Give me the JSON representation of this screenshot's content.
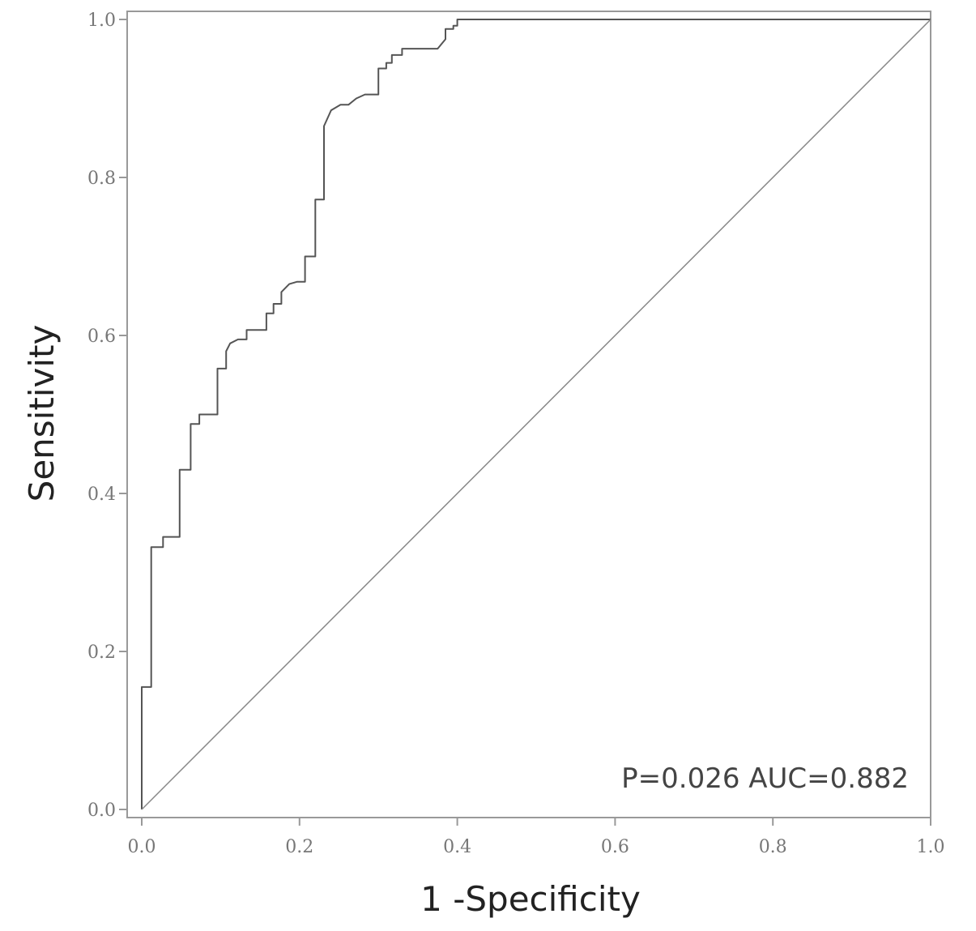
{
  "chart_data": {
    "type": "line",
    "title": "",
    "xlabel": "1 -Specificity",
    "ylabel": "Sensitivity",
    "xlim": [
      0.0,
      1.0
    ],
    "ylim": [
      0.0,
      1.0
    ],
    "x_ticks": [
      "0.0",
      "0.2",
      "0.4",
      "0.6",
      "0.8",
      "1.0"
    ],
    "y_ticks": [
      "0.0",
      "0.2",
      "0.4",
      "0.6",
      "0.8",
      "1.0"
    ],
    "grid": false,
    "legend": "none",
    "annotation": "P=0.026 AUC=0.882",
    "line_color": "#555555",
    "series": [
      {
        "name": "",
        "role": "roc",
        "x": [
          0.0,
          0.0,
          0.012,
          0.012,
          0.027,
          0.027,
          0.048,
          0.048,
          0.062,
          0.062,
          0.073,
          0.073,
          0.096,
          0.096,
          0.107,
          0.107,
          0.112,
          0.122,
          0.133,
          0.133,
          0.158,
          0.158,
          0.167,
          0.167,
          0.177,
          0.177,
          0.187,
          0.197,
          0.207,
          0.207,
          0.22,
          0.22,
          0.231,
          0.231,
          0.24,
          0.252,
          0.262,
          0.272,
          0.283,
          0.3,
          0.3,
          0.31,
          0.31,
          0.317,
          0.317,
          0.33,
          0.33,
          0.345,
          0.375,
          0.385,
          0.385,
          0.395,
          0.395,
          0.4,
          0.4,
          1.0,
          1.0
        ],
        "y": [
          0.0,
          0.155,
          0.155,
          0.332,
          0.332,
          0.345,
          0.345,
          0.43,
          0.43,
          0.488,
          0.488,
          0.5,
          0.5,
          0.558,
          0.558,
          0.58,
          0.59,
          0.595,
          0.595,
          0.607,
          0.607,
          0.628,
          0.628,
          0.64,
          0.64,
          0.655,
          0.665,
          0.668,
          0.668,
          0.7,
          0.7,
          0.772,
          0.772,
          0.865,
          0.885,
          0.892,
          0.892,
          0.9,
          0.905,
          0.905,
          0.938,
          0.938,
          0.945,
          0.945,
          0.955,
          0.955,
          0.963,
          0.963,
          0.963,
          0.975,
          0.988,
          0.988,
          0.992,
          0.992,
          1.0,
          1.0,
          1.0
        ]
      },
      {
        "name": "",
        "role": "reference",
        "x": [
          0.0,
          1.0
        ],
        "y": [
          0.0,
          1.0
        ]
      }
    ]
  }
}
